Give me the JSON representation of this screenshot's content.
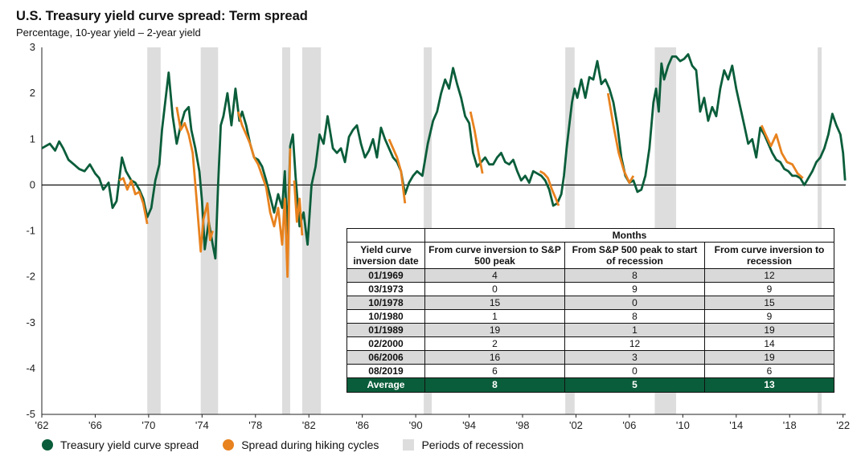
{
  "header": {
    "title": "U.S. Treasury yield curve spread: Term spread",
    "subtitle": "Percentage, 10-year yield – 2-year yield"
  },
  "colors": {
    "spread": "#0a5d3a",
    "hiking": "#e8821e",
    "recession": "#dddddd",
    "average_row": "#0a5d3a",
    "shaded_row": "#d9d9d9"
  },
  "legend": {
    "spread": "Treasury yield curve spread",
    "hiking": "Spread during hiking cycles",
    "recession": "Periods of recession"
  },
  "chart_data": {
    "type": "line",
    "title": "U.S. Treasury yield curve spread: Term spread",
    "ylabel": "Percentage, 10-year yield – 2-year yield",
    "xlabel": "",
    "xlim": [
      1962,
      2022.2
    ],
    "ylim": [
      -5,
      3
    ],
    "y_ticks": [
      3,
      2,
      1,
      0,
      -1,
      -2,
      -3,
      -4,
      -5
    ],
    "x_ticks": [
      1962,
      1966,
      1970,
      1974,
      1978,
      1982,
      1986,
      1990,
      1994,
      1998,
      2002,
      2006,
      2010,
      2014,
      2018,
      2022
    ],
    "x_tick_labels": [
      "'62",
      "'66",
      "'70",
      "'74",
      "'78",
      "'82",
      "'86",
      "'90",
      "'94",
      "'98",
      "'02",
      "'06",
      "'10",
      "'14",
      "'18",
      "'22"
    ],
    "recessions": [
      [
        1969.9,
        1970.9
      ],
      [
        1973.9,
        1975.2
      ],
      [
        1980.0,
        1980.6
      ],
      [
        1981.5,
        1982.9
      ],
      [
        1990.6,
        1991.2
      ],
      [
        2001.2,
        2001.9
      ],
      [
        2007.9,
        2009.5
      ],
      [
        2020.1,
        2020.4
      ]
    ],
    "series": [
      {
        "name": "Treasury yield curve spread",
        "x": [
          1962.0,
          1962.3,
          1962.6,
          1963.0,
          1963.3,
          1963.6,
          1964.0,
          1964.4,
          1964.8,
          1965.2,
          1965.6,
          1966.0,
          1966.3,
          1966.6,
          1967.0,
          1967.3,
          1967.6,
          1968.0,
          1968.3,
          1968.7,
          1969.0,
          1969.3,
          1969.6,
          1969.9,
          1970.2,
          1970.5,
          1970.8,
          1971.0,
          1971.2,
          1971.5,
          1971.8,
          1972.1,
          1972.4,
          1972.7,
          1973.0,
          1973.2,
          1973.5,
          1973.8,
          1974.0,
          1974.2,
          1974.5,
          1974.8,
          1975.0,
          1975.2,
          1975.4,
          1975.6,
          1975.9,
          1976.2,
          1976.5,
          1976.8,
          1977.0,
          1977.3,
          1977.6,
          1977.9,
          1978.2,
          1978.5,
          1978.8,
          1979.1,
          1979.4,
          1979.7,
          1980.0,
          1980.2,
          1980.4,
          1980.6,
          1980.8,
          1981.0,
          1981.3,
          1981.6,
          1981.9,
          1982.2,
          1982.5,
          1982.8,
          1983.1,
          1983.4,
          1983.8,
          1984.1,
          1984.4,
          1984.7,
          1985.0,
          1985.3,
          1985.6,
          1985.9,
          1986.2,
          1986.5,
          1986.8,
          1987.1,
          1987.4,
          1987.7,
          1988.0,
          1988.3,
          1988.6,
          1988.9,
          1989.2,
          1989.5,
          1989.8,
          1990.1,
          1990.5,
          1990.9,
          1991.3,
          1991.6,
          1991.9,
          1992.2,
          1992.5,
          1992.8,
          1993.1,
          1993.4,
          1993.7,
          1994.0,
          1994.3,
          1994.6,
          1994.9,
          1995.2,
          1995.5,
          1995.8,
          1996.1,
          1996.4,
          1996.7,
          1997.0,
          1997.3,
          1997.6,
          1997.9,
          1998.2,
          1998.5,
          1998.8,
          1999.1,
          1999.4,
          1999.7,
          2000.0,
          2000.3,
          2000.6,
          2000.9,
          2001.1,
          2001.3,
          2001.5,
          2001.7,
          2001.9,
          2002.1,
          2002.4,
          2002.7,
          2003.0,
          2003.3,
          2003.6,
          2003.9,
          2004.2,
          2004.5,
          2004.8,
          2005.1,
          2005.4,
          2005.7,
          2006.0,
          2006.3,
          2006.6,
          2006.9,
          2007.2,
          2007.5,
          2007.8,
          2008.0,
          2008.2,
          2008.4,
          2008.6,
          2008.9,
          2009.2,
          2009.5,
          2009.8,
          2010.1,
          2010.4,
          2010.7,
          2011.0,
          2011.3,
          2011.6,
          2011.9,
          2012.2,
          2012.5,
          2012.8,
          2013.1,
          2013.4,
          2013.7,
          2014.0,
          2014.3,
          2014.6,
          2014.9,
          2015.2,
          2015.5,
          2015.8,
          2016.1,
          2016.4,
          2016.7,
          2017.0,
          2017.3,
          2017.6,
          2017.9,
          2018.2,
          2018.5,
          2018.8,
          2019.1,
          2019.4,
          2019.7,
          2020.0,
          2020.3,
          2020.6,
          2020.9,
          2021.2,
          2021.5,
          2021.8,
          2022.0,
          2022.15
        ],
        "values": [
          0.8,
          0.85,
          0.9,
          0.75,
          0.95,
          0.8,
          0.55,
          0.45,
          0.35,
          0.3,
          0.45,
          0.25,
          0.15,
          -0.1,
          0.05,
          -0.5,
          -0.35,
          0.6,
          0.3,
          0.1,
          0.05,
          -0.1,
          -0.3,
          -0.7,
          -0.5,
          0.1,
          0.45,
          1.2,
          1.7,
          2.45,
          1.5,
          0.9,
          1.3,
          1.6,
          1.7,
          1.2,
          0.8,
          0.3,
          -0.35,
          -1.4,
          -0.8,
          -1.3,
          -1.6,
          0.0,
          1.3,
          1.5,
          2.0,
          1.3,
          2.1,
          1.4,
          1.6,
          1.3,
          0.9,
          0.6,
          0.55,
          0.4,
          0.1,
          -0.25,
          -0.6,
          -0.2,
          -0.5,
          0.3,
          -1.2,
          0.85,
          1.1,
          0.2,
          -0.9,
          -0.6,
          -1.3,
          0.0,
          0.4,
          1.1,
          0.9,
          1.5,
          0.8,
          0.7,
          0.8,
          0.5,
          1.05,
          1.2,
          1.3,
          0.9,
          0.6,
          0.75,
          1.0,
          0.6,
          1.25,
          1.0,
          0.8,
          0.6,
          0.5,
          0.3,
          -0.2,
          0.05,
          0.2,
          0.3,
          0.2,
          0.9,
          1.4,
          1.6,
          2.0,
          2.3,
          2.1,
          2.55,
          2.2,
          1.9,
          1.5,
          1.35,
          0.7,
          0.4,
          0.5,
          0.6,
          0.45,
          0.45,
          0.6,
          0.7,
          0.5,
          0.45,
          0.55,
          0.3,
          0.1,
          0.2,
          0.05,
          0.3,
          0.25,
          0.2,
          0.1,
          -0.1,
          -0.45,
          -0.4,
          -0.2,
          0.2,
          0.8,
          1.3,
          1.8,
          2.1,
          1.9,
          2.3,
          1.9,
          2.35,
          2.3,
          2.7,
          2.2,
          2.3,
          2.1,
          1.8,
          1.3,
          0.6,
          0.2,
          0.05,
          0.1,
          -0.15,
          -0.1,
          0.2,
          0.8,
          1.8,
          2.1,
          1.6,
          2.65,
          2.3,
          2.6,
          2.8,
          2.8,
          2.7,
          2.75,
          2.85,
          2.6,
          2.5,
          1.6,
          1.9,
          1.4,
          1.7,
          1.5,
          2.1,
          2.5,
          2.3,
          2.6,
          2.1,
          1.7,
          1.3,
          0.9,
          1.0,
          0.6,
          1.25,
          1.1,
          0.9,
          0.7,
          0.55,
          0.5,
          0.35,
          0.3,
          0.2,
          0.2,
          0.15,
          0.0,
          0.15,
          0.3,
          0.5,
          0.6,
          0.8,
          1.1,
          1.55,
          1.3,
          1.1,
          0.7,
          0.1
        ]
      },
      {
        "name": "Spread during hiking cycles",
        "segments": [
          {
            "x": [
              1967.8,
              1968.1,
              1968.4,
              1968.7,
              1969.0,
              1969.3,
              1969.6,
              1969.9
            ],
            "values": [
              0.1,
              0.15,
              -0.1,
              0.1,
              -0.2,
              -0.15,
              -0.4,
              -0.85
            ]
          },
          {
            "x": [
              1972.1,
              1972.4,
              1972.7,
              1973.0,
              1973.3,
              1973.6,
              1973.9,
              1974.1,
              1974.4,
              1974.6,
              1974.8
            ],
            "values": [
              1.7,
              1.2,
              1.35,
              1.1,
              0.7,
              -0.35,
              -1.45,
              -0.75,
              -0.4,
              -1.2,
              -1.0
            ]
          },
          {
            "x": [
              1976.7,
              1977.0,
              1977.3,
              1977.6,
              1977.9,
              1978.2,
              1978.5,
              1978.8,
              1979.1,
              1979.4,
              1979.7,
              1980.0,
              1980.2,
              1980.4,
              1980.6
            ],
            "values": [
              1.6,
              1.3,
              1.1,
              0.9,
              0.6,
              0.45,
              0.2,
              -0.05,
              -0.6,
              -0.9,
              -0.5,
              -1.3,
              -0.3,
              -2.0,
              0.8
            ]
          },
          {
            "x": [
              1980.9,
              1981.1,
              1981.3,
              1981.5
            ],
            "values": [
              0.1,
              -0.8,
              -0.3,
              -1.1
            ]
          },
          {
            "x": [
              1988.0,
              1988.3,
              1988.6,
              1988.9,
              1989.2
            ],
            "values": [
              1.0,
              0.8,
              0.6,
              0.3,
              -0.4
            ]
          },
          {
            "x": [
              1994.1,
              1994.4,
              1994.7,
              1995.0
            ],
            "values": [
              1.6,
              1.2,
              0.7,
              0.25
            ]
          },
          {
            "x": [
              1999.3,
              1999.6,
              1999.9,
              2000.2,
              2000.5,
              2000.7
            ],
            "values": [
              0.3,
              0.25,
              0.15,
              -0.1,
              -0.3,
              -0.45
            ]
          },
          {
            "x": [
              2004.4,
              2004.8,
              2005.2,
              2005.6,
              2006.0,
              2006.3
            ],
            "values": [
              2.0,
              1.3,
              0.7,
              0.3,
              0.05,
              0.2
            ]
          },
          {
            "x": [
              2015.9,
              2016.2,
              2016.6,
              2017.0,
              2017.4,
              2017.8,
              2018.2,
              2018.6,
              2019.0
            ],
            "values": [
              1.3,
              1.1,
              0.85,
              1.1,
              0.7,
              0.5,
              0.45,
              0.25,
              0.15
            ]
          }
        ]
      }
    ]
  },
  "table": {
    "months_label": "Months",
    "headers": [
      "Yield curve inversion date",
      "From curve inversion to S&P 500 peak",
      "From S&P 500 peak to start of recession",
      "From curve inversion to recession"
    ],
    "rows": [
      {
        "date": "01/1969",
        "a": "4",
        "b": "8",
        "c": "12"
      },
      {
        "date": "03/1973",
        "a": "0",
        "b": "9",
        "c": "9"
      },
      {
        "date": "10/1978",
        "a": "15",
        "b": "0",
        "c": "15"
      },
      {
        "date": "10/1980",
        "a": "1",
        "b": "8",
        "c": "9"
      },
      {
        "date": "01/1989",
        "a": "19",
        "b": "1",
        "c": "19"
      },
      {
        "date": "02/2000",
        "a": "2",
        "b": "12",
        "c": "14"
      },
      {
        "date": "06/2006",
        "a": "16",
        "b": "3",
        "c": "19"
      },
      {
        "date": "08/2019",
        "a": "6",
        "b": "0",
        "c": "6"
      }
    ],
    "average": {
      "label": "Average",
      "a": "8",
      "b": "5",
      "c": "13"
    }
  }
}
